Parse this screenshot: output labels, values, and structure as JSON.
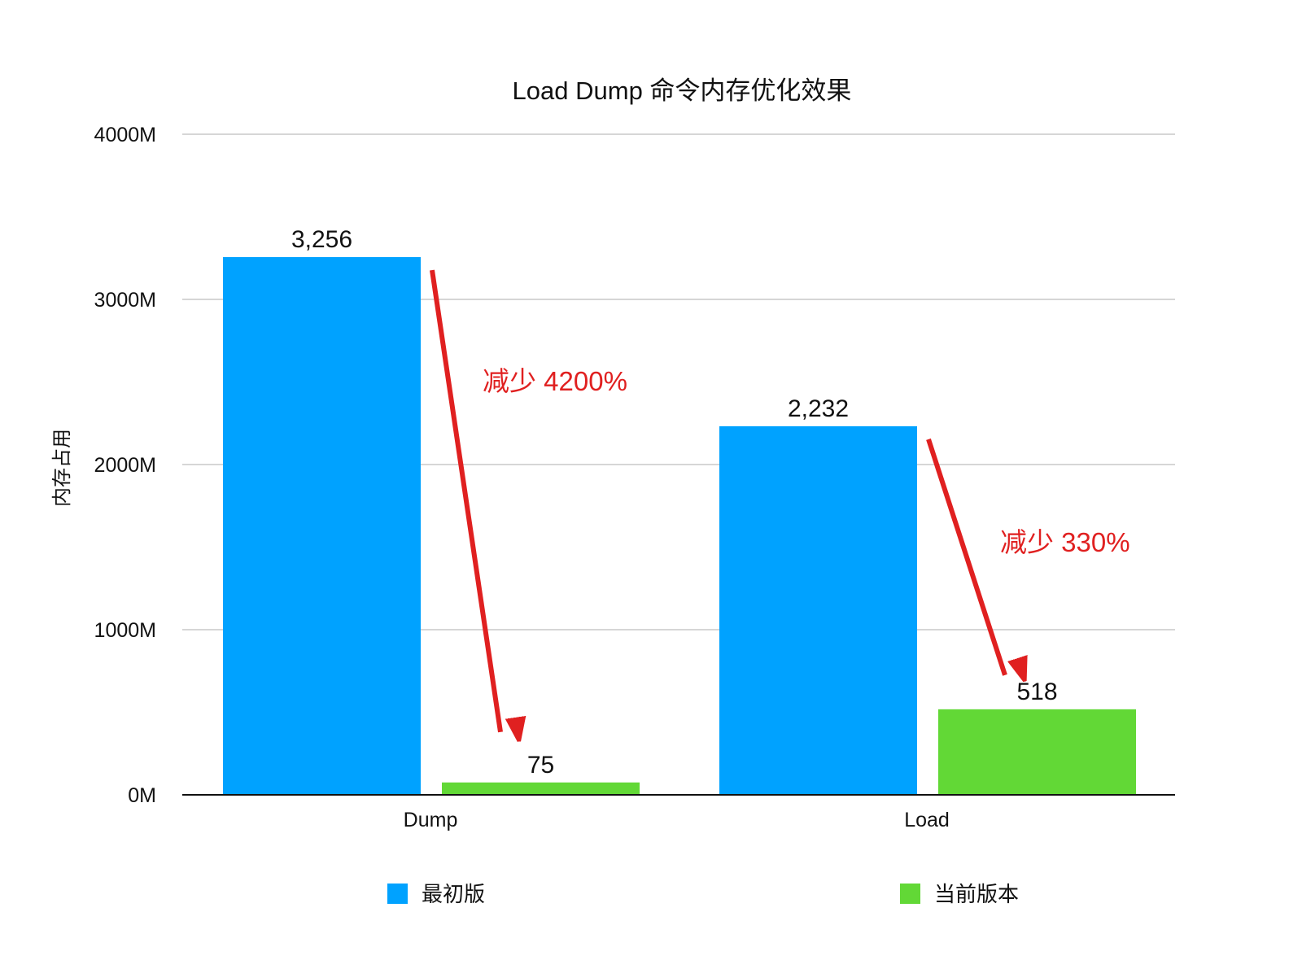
{
  "chart_data": {
    "type": "bar",
    "title": "Load Dump 命令内存优化效果",
    "xlabel": "",
    "ylabel": "内存占用",
    "categories": [
      "Dump",
      "Load"
    ],
    "series": [
      {
        "name": "最初版",
        "values": [
          3256,
          2232
        ],
        "labels": [
          "3,256",
          "2,232"
        ],
        "color": "#00a2ff"
      },
      {
        "name": "当前版本",
        "values": [
          75,
          518
        ],
        "labels": [
          "75",
          "518"
        ],
        "color": "#62d836"
      }
    ],
    "ylim": [
      0,
      4000
    ],
    "yticks": [
      {
        "value": 0,
        "label": "0M"
      },
      {
        "value": 1000,
        "label": "1000M"
      },
      {
        "value": 2000,
        "label": "2000M"
      },
      {
        "value": 3000,
        "label": "3000M"
      },
      {
        "value": 4000,
        "label": "4000M"
      }
    ],
    "grid": true,
    "legend_position": "bottom",
    "annotations": [
      {
        "text": "减少 4200%",
        "category": "Dump",
        "from_value": 3256,
        "to_value": 75,
        "color": "#e02020"
      },
      {
        "text": "减少 330%",
        "category": "Load",
        "from_value": 2232,
        "to_value": 518,
        "color": "#e02020"
      }
    ],
    "colors": {
      "gridline": "#c8c8c8",
      "axis": "#111111",
      "annotation": "#e02020"
    }
  }
}
